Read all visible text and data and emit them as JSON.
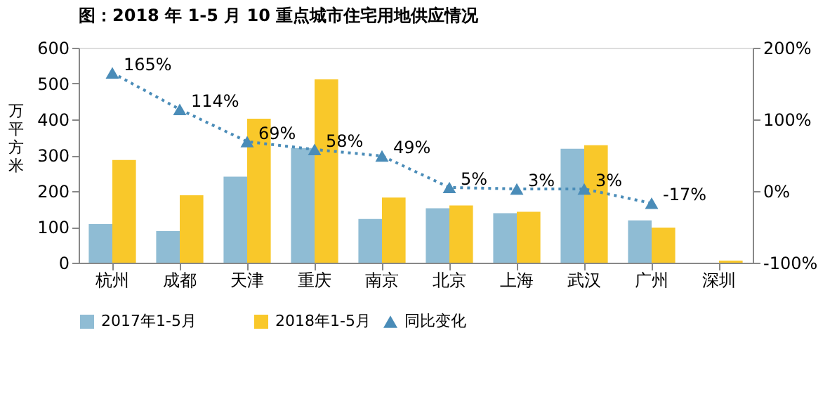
{
  "chart_data": {
    "type": "bar",
    "title": "图：2018 年 1-5 月 10 重点城市住宅用地供应情况",
    "ylabel": "万平方米",
    "categories": [
      "杭州",
      "成都",
      "天津",
      "重庆",
      "南京",
      "北京",
      "上海",
      "武汉",
      "广州",
      "深圳"
    ],
    "series": [
      {
        "name": "2017年1-5月",
        "color": "#8fbcd4",
        "values": [
          108,
          88,
          240,
          320,
          122,
          152,
          138,
          318,
          118,
          null
        ]
      },
      {
        "name": "2018年1-5月",
        "color": "#f9c82a",
        "values": [
          287,
          188,
          402,
          512,
          182,
          160,
          142,
          328,
          98,
          6
        ]
      },
      {
        "name": "同比变化",
        "type": "line",
        "axis": "y2",
        "color": "#4a8cb8",
        "marker": "triangle",
        "line_style": "dotted",
        "values": [
          165,
          114,
          69,
          58,
          49,
          5,
          3,
          3,
          -17,
          null
        ],
        "value_labels": [
          "165%",
          "114%",
          "69%",
          "58%",
          "49%",
          "5%",
          "3%",
          "3%",
          "-17%",
          null
        ]
      }
    ],
    "ylim": [
      0,
      600
    ],
    "yticks": [
      0,
      100,
      200,
      300,
      400,
      500,
      600
    ],
    "y2lim": [
      -100,
      200
    ],
    "y2ticks": [
      {
        "value": -100,
        "label": "-100%"
      },
      {
        "value": 0,
        "label": "0%"
      },
      {
        "value": 100,
        "label": "100%"
      },
      {
        "value": 200,
        "label": "200%"
      }
    ],
    "grid": false,
    "legend": "bottom"
  }
}
